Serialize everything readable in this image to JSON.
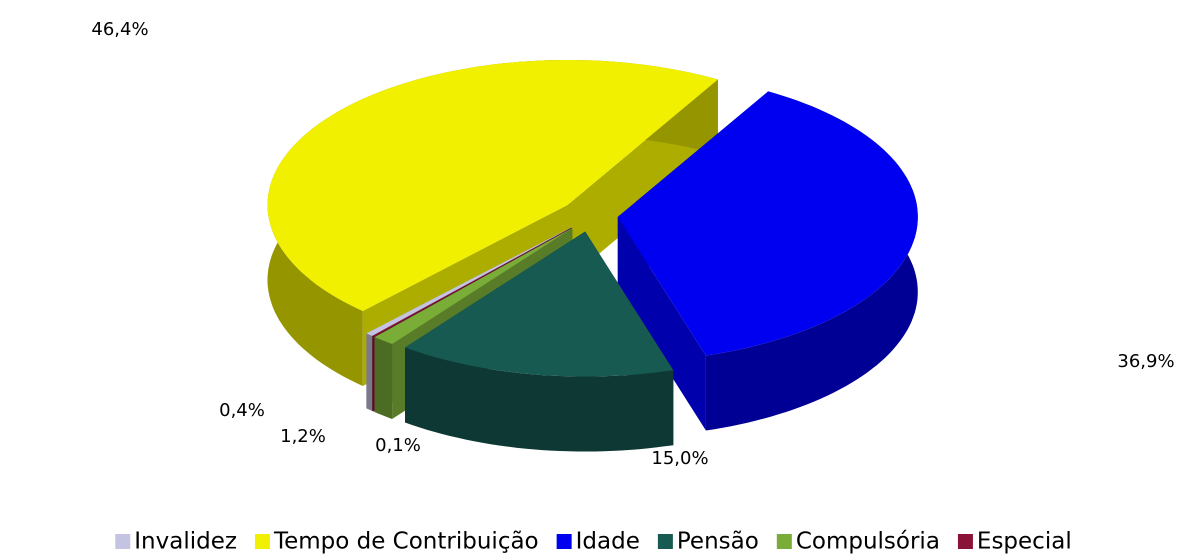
{
  "chart_data": {
    "type": "pie",
    "categories": [
      "Invalidez",
      "Tempo de Contribuição",
      "Idade",
      "Pensão",
      "Compulsória",
      "Especial"
    ],
    "values": [
      0.4,
      46.4,
      36.9,
      15.0,
      1.2,
      0.1
    ],
    "value_labels": [
      "0,4%",
      "46,4%",
      "36,9%",
      "15,0%",
      "1,2%",
      "0,1%"
    ],
    "colors": [
      "#c4c4e2",
      "#f0f000",
      "#0000f0",
      "#175a52",
      "#7aac38",
      "#8a1438"
    ],
    "legend": "bottom"
  }
}
